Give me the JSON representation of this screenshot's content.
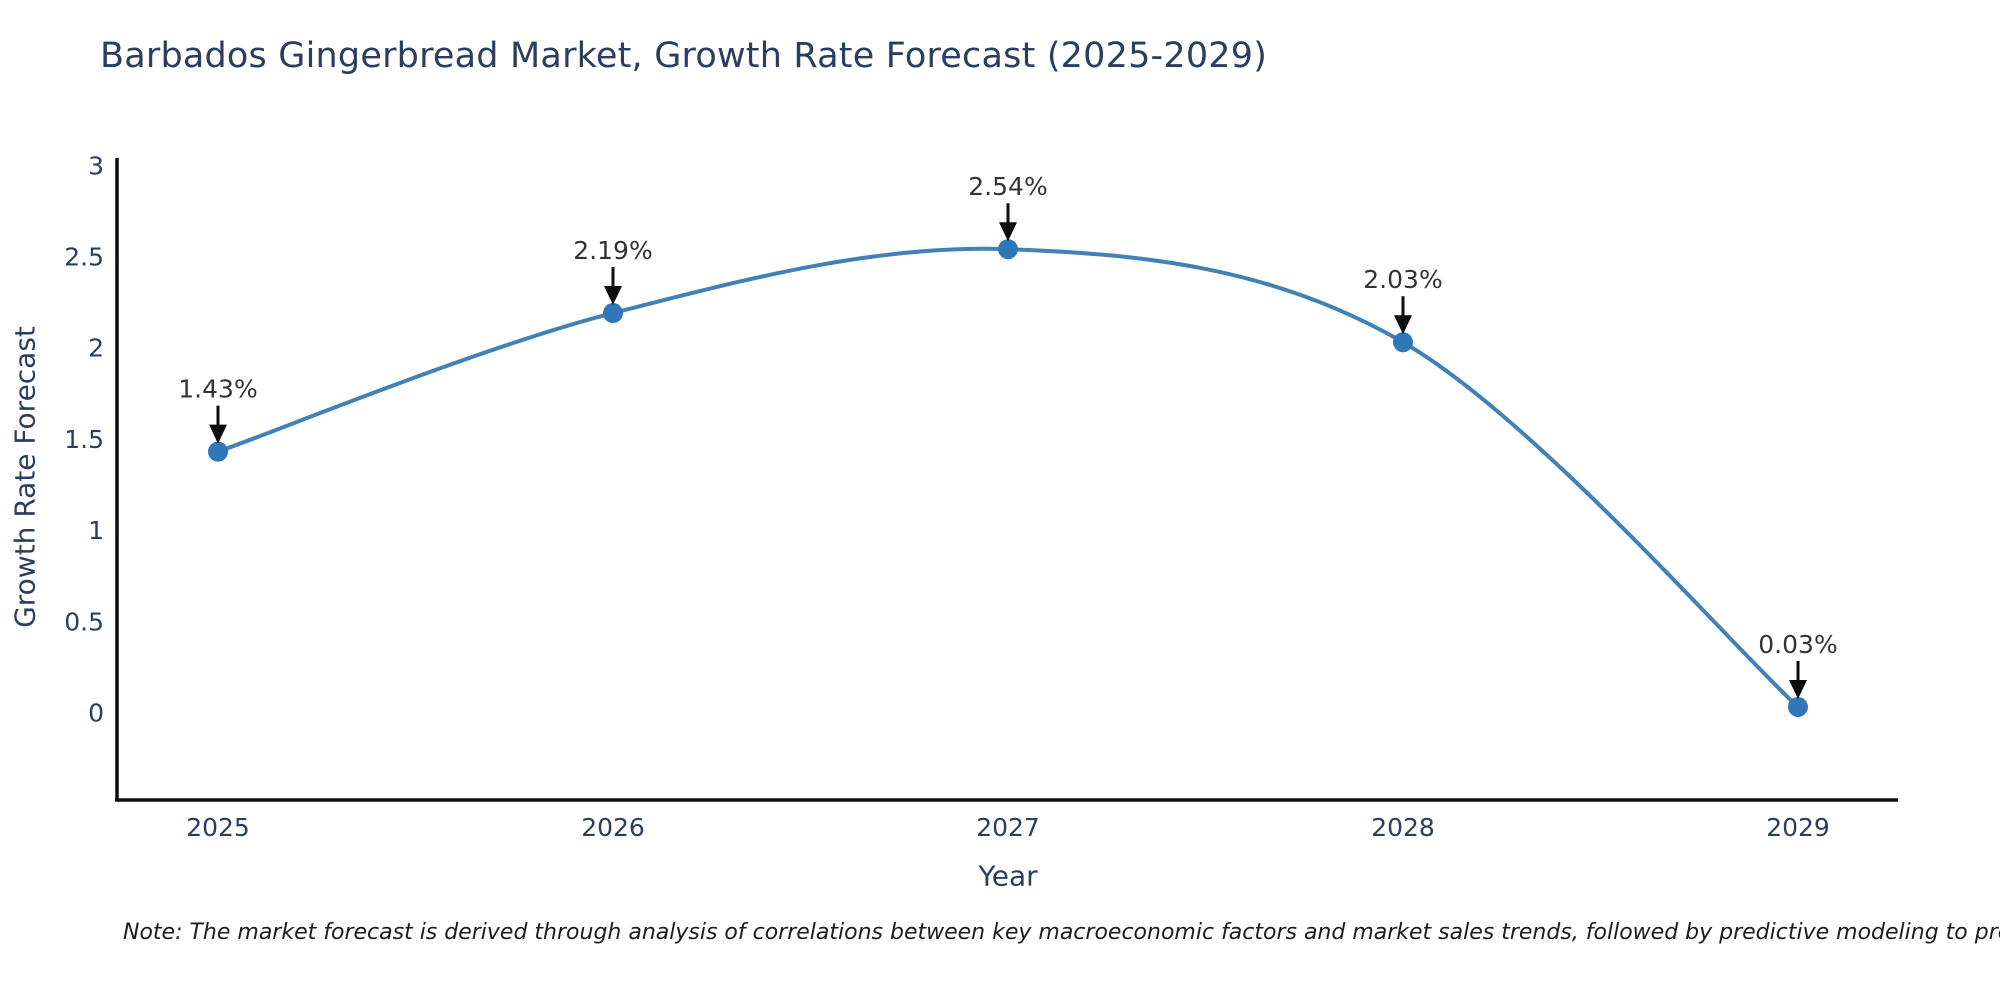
{
  "title": "Barbados Gingerbread Market, Growth Rate Forecast (2025-2029)",
  "note": "Note: The market forecast is derived through analysis of correlations between key macroeconomic factors and market sales trends, followed by predictive modeling to project future sales",
  "chart_data": {
    "type": "line",
    "title": "Barbados Gingerbread Market, Growth Rate Forecast (2025-2029)",
    "xlabel": "Year",
    "ylabel": "Growth Rate Forecast",
    "x": [
      "2025",
      "2026",
      "2027",
      "2028",
      "2029"
    ],
    "series": [
      {
        "name": "Growth Rate Forecast",
        "values": [
          1.43,
          2.19,
          2.54,
          2.03,
          0.03
        ],
        "point_labels": [
          "1.43%",
          "2.19%",
          "2.54%",
          "2.03%",
          "0.03%"
        ]
      }
    ],
    "yticks": [
      0,
      0.5,
      1,
      1.5,
      2,
      2.5,
      3
    ],
    "ylim": [
      -0.48,
      3.04
    ],
    "line_shape": "spline",
    "markers": true,
    "grid": false,
    "legend_position": "none",
    "annotations_style": "black arrow pointing down at each data point with percentage label above",
    "colors": {
      "line": "#4181b8",
      "marker": "#2f77b6",
      "axis": "#0d0d0d",
      "arrow": "#0d0d0d",
      "annotation_text": "#333333",
      "tick_text": "#2a3f5f",
      "title_text": "#2a3f5f"
    }
  }
}
